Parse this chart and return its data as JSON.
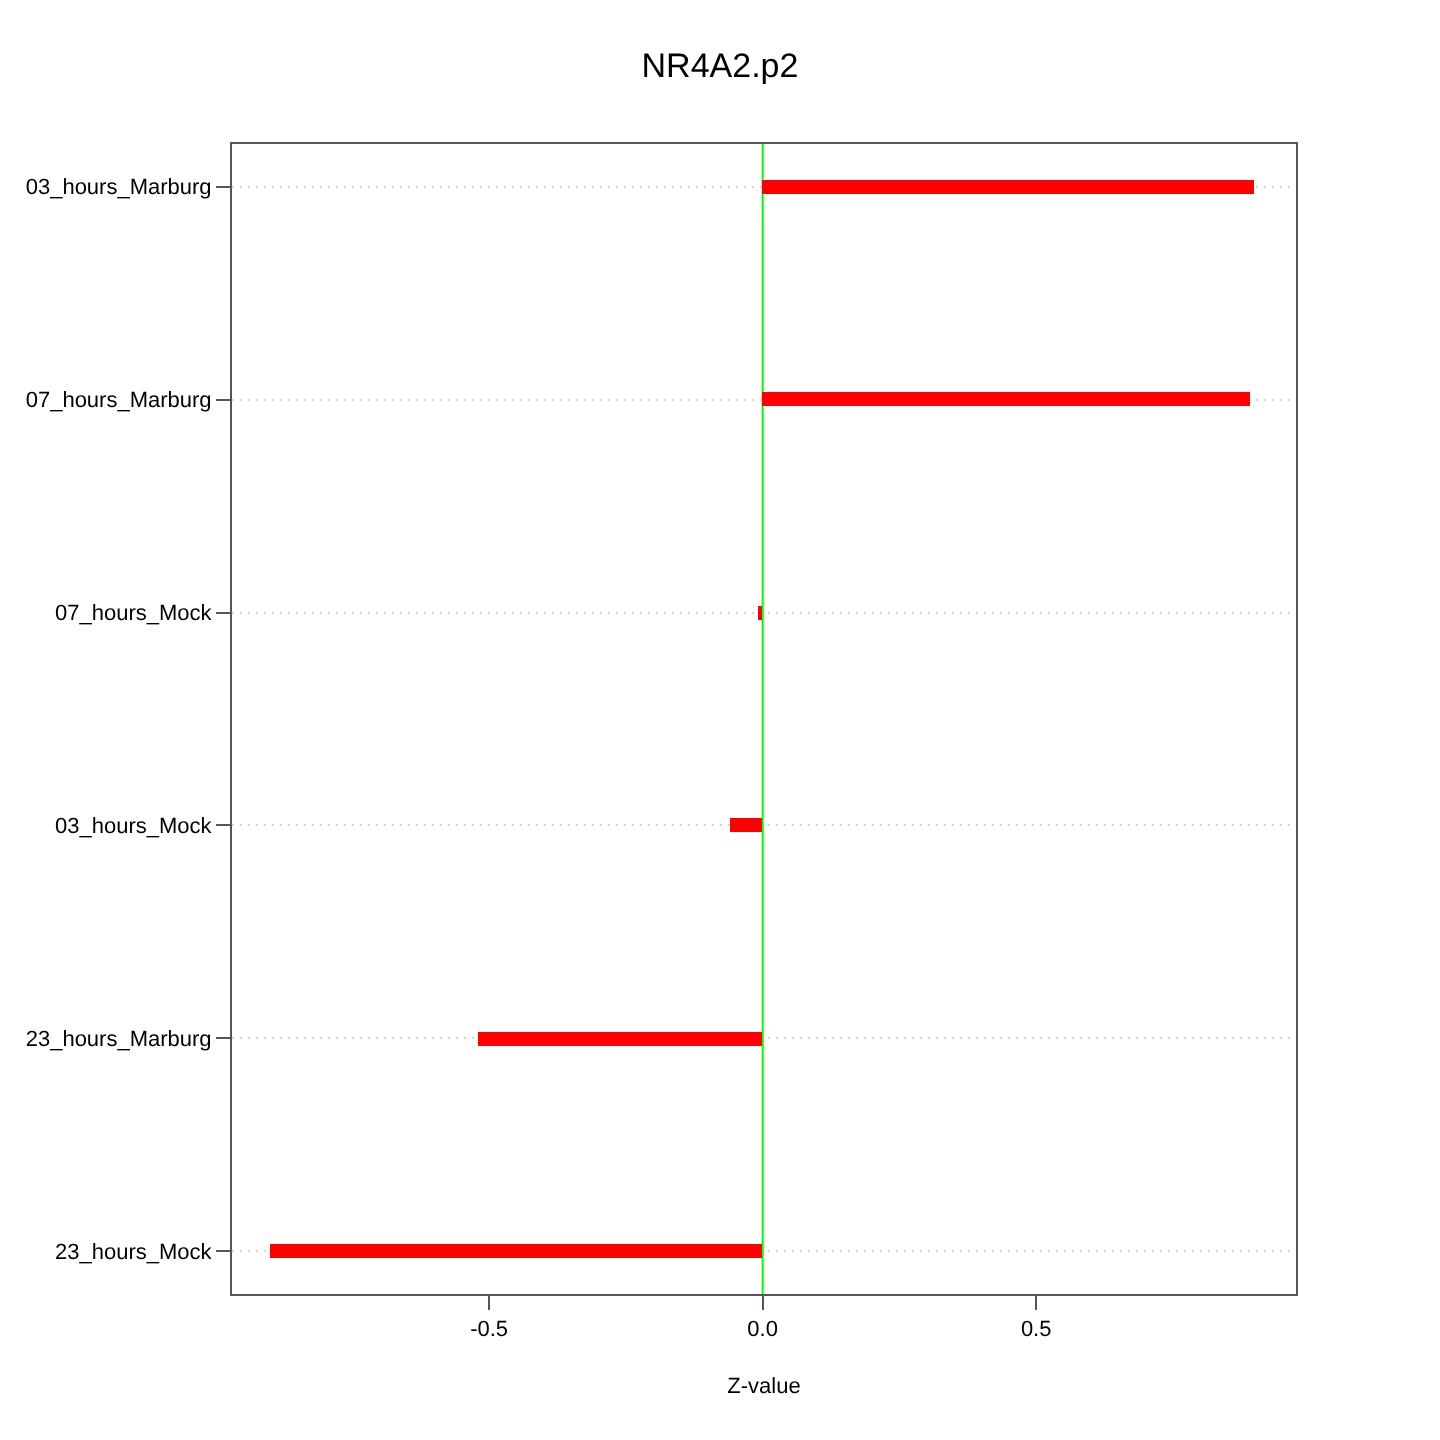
{
  "chart_data": {
    "type": "bar",
    "orientation": "horizontal",
    "title": "NR4A2.p2",
    "xlabel": "Z-value",
    "categories": [
      "03_hours_Marburg",
      "07_hours_Marburg",
      "07_hours_Mock",
      "03_hours_Mock",
      "23_hours_Marburg",
      "23_hours_Mock"
    ],
    "values": [
      0.9,
      0.89,
      -0.01,
      -0.06,
      -0.52,
      -0.9
    ],
    "color": "#ff0000",
    "xlim": [
      -0.97,
      0.975
    ],
    "xticks": [
      -0.5,
      {
        "value": 0,
        "label": "0.0"
      },
      0.5
    ],
    "grid": "y",
    "ref_lines": [
      {
        "axis": "x",
        "value": 0,
        "color": "#00ff00"
      }
    ]
  }
}
